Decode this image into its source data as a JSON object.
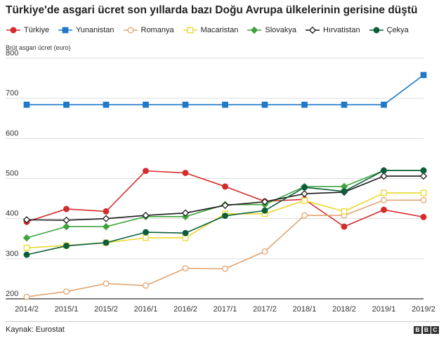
{
  "title": "Türkiye'de asgari ücret son yıllarda bazı Doğu Avrupa ülkelerinin gerisine düştü",
  "source": "Kaynak: Eurostat",
  "logo": [
    "B",
    "B",
    "C"
  ],
  "chart_data": {
    "type": "line",
    "ylabel": "Brüt asgari ücret (euro)",
    "ylim": [
      200,
      800
    ],
    "yticks": [
      200,
      300,
      400,
      500,
      600,
      700,
      800
    ],
    "grid": true,
    "legend_position": "top",
    "categories": [
      "2014/2",
      "2015/1",
      "2015/2",
      "2016/1",
      "2016/2",
      "2017/1",
      "2017/2",
      "2018/1",
      "2018/2",
      "2019/1",
      "2019/2"
    ],
    "series": [
      {
        "name": "Türkiye",
        "color": "#d42b2b",
        "marker": "circle-filled",
        "values": [
          392,
          424,
          418,
          519,
          514,
          480,
          443,
          448,
          380,
          422,
          404
        ]
      },
      {
        "name": "Yunanistan",
        "color": "#1f78c8",
        "marker": "square-filled",
        "values": [
          684,
          684,
          684,
          684,
          684,
          684,
          684,
          684,
          684,
          684,
          758
        ]
      },
      {
        "name": "Romanya",
        "color": "#e0a46e",
        "marker": "circle-open",
        "values": [
          205,
          218,
          238,
          233,
          276,
          275,
          318,
          408,
          408,
          446,
          446
        ]
      },
      {
        "name": "Macaristan",
        "color": "#e8d92c",
        "marker": "square-open",
        "values": [
          327,
          333,
          340,
          352,
          352,
          412,
          412,
          445,
          418,
          464,
          464
        ]
      },
      {
        "name": "Slovakya",
        "color": "#3ea33e",
        "marker": "diamond-filled",
        "values": [
          352,
          380,
          380,
          405,
          405,
          435,
          435,
          480,
          480,
          520,
          520
        ]
      },
      {
        "name": "Hırvatistan",
        "color": "#1a1a1a",
        "marker": "diamond-open",
        "values": [
          397,
          396,
          400,
          408,
          414,
          433,
          442,
          462,
          466,
          506,
          506
        ]
      },
      {
        "name": "Çekya",
        "color": "#0b5e3a",
        "marker": "circle-filled",
        "values": [
          310,
          332,
          340,
          366,
          364,
          407,
          420,
          478,
          468,
          520,
          520
        ]
      }
    ]
  }
}
